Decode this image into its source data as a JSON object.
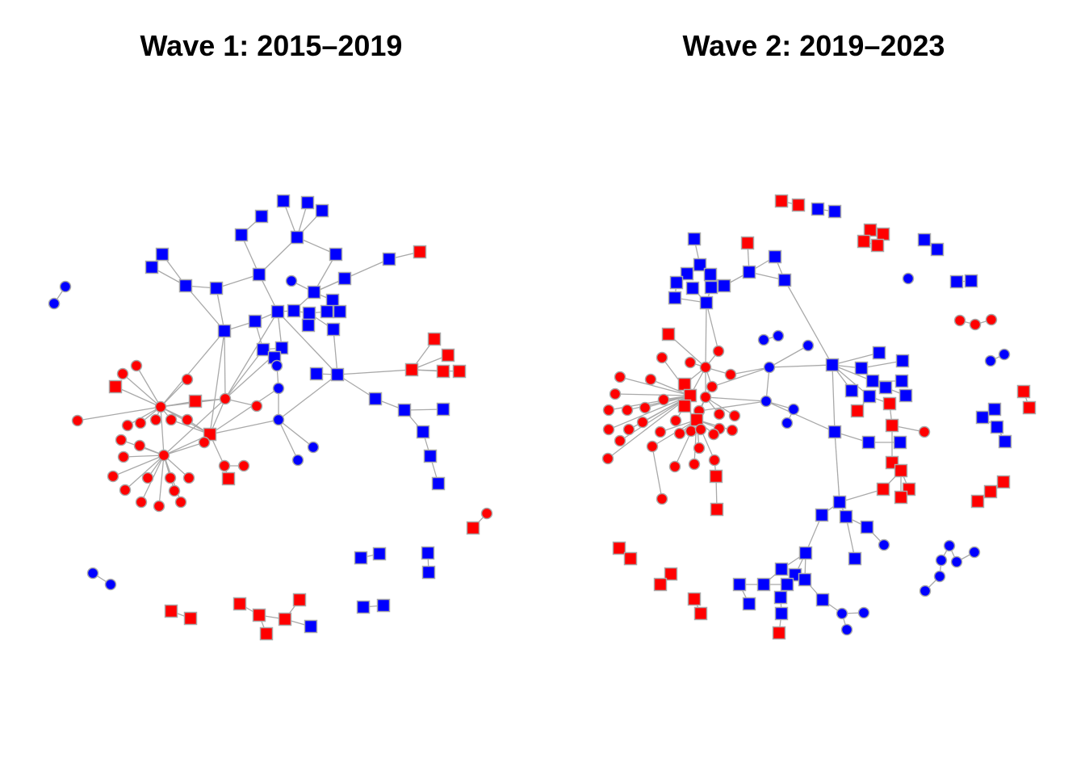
{
  "panels": [
    {
      "title": "Wave 1: 2015–2019"
    },
    {
      "title": "Wave 2: 2019–2023"
    }
  ],
  "colors": {
    "red_node": "#ff0000",
    "blue_node": "#0000ff",
    "edge": "#a9a9a9",
    "node_border": "#a9a9a9",
    "background": "#ffffff"
  },
  "node_shapes": [
    "square",
    "circle"
  ]
}
